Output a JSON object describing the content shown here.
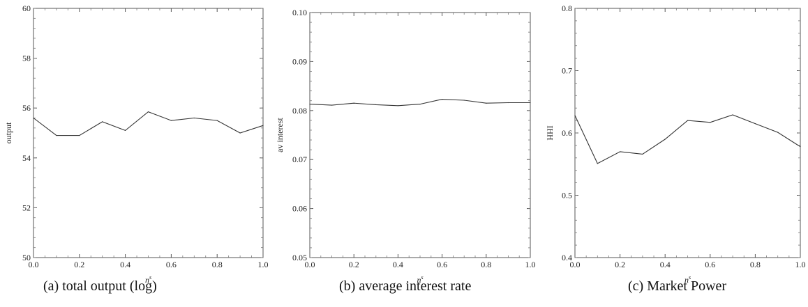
{
  "chart_data": [
    {
      "type": "line",
      "caption": "(a) total output (log)",
      "xlabel": "n",
      "xlabel_sup": "s",
      "ylabel": "output",
      "xlim": [
        0,
        1
      ],
      "ylim": [
        50,
        60
      ],
      "xticks": [
        "0.0",
        "0.2",
        "0.4",
        "0.6",
        "0.8",
        "1.0"
      ],
      "yticks": [
        "50",
        "52",
        "54",
        "56",
        "58",
        "60"
      ],
      "x": [
        0.0,
        0.1,
        0.2,
        0.3,
        0.4,
        0.5,
        0.6,
        0.7,
        0.8,
        0.9,
        1.0
      ],
      "values": [
        55.6,
        54.9,
        54.9,
        55.45,
        55.1,
        55.85,
        55.5,
        55.6,
        55.5,
        55.0,
        55.3
      ]
    },
    {
      "type": "line",
      "caption": "(b) average interest rate",
      "xlabel": "n",
      "xlabel_sup": "s",
      "ylabel": "av interest",
      "xlim": [
        0,
        1
      ],
      "ylim": [
        0.05,
        0.1
      ],
      "xticks": [
        "0.0",
        "0.2",
        "0.4",
        "0.6",
        "0.8",
        "1.0"
      ],
      "yticks": [
        "0.05",
        "0.06",
        "0.07",
        "0.08",
        "0.09",
        "0.10"
      ],
      "x": [
        0.0,
        0.1,
        0.2,
        0.3,
        0.4,
        0.5,
        0.6,
        0.7,
        0.8,
        0.9,
        1.0
      ],
      "values": [
        0.0813,
        0.0811,
        0.0815,
        0.0812,
        0.081,
        0.0813,
        0.0823,
        0.0821,
        0.0815,
        0.0816,
        0.0816
      ]
    },
    {
      "type": "line",
      "caption": "(c) Market Power",
      "xlabel": "n",
      "xlabel_sup": "s",
      "ylabel": "HHI",
      "xlim": [
        0,
        1
      ],
      "ylim": [
        0.4,
        0.8
      ],
      "xticks": [
        "0.0",
        "0.2",
        "0.4",
        "0.6",
        "0.8",
        "1.0"
      ],
      "yticks": [
        "0.4",
        "0.5",
        "0.6",
        "0.7",
        "0.8"
      ],
      "x": [
        0.0,
        0.1,
        0.2,
        0.3,
        0.4,
        0.5,
        0.6,
        0.7,
        0.8,
        0.9,
        1.0
      ],
      "values": [
        0.628,
        0.551,
        0.57,
        0.566,
        0.59,
        0.62,
        0.617,
        0.629,
        0.615,
        0.601,
        0.578
      ]
    }
  ]
}
